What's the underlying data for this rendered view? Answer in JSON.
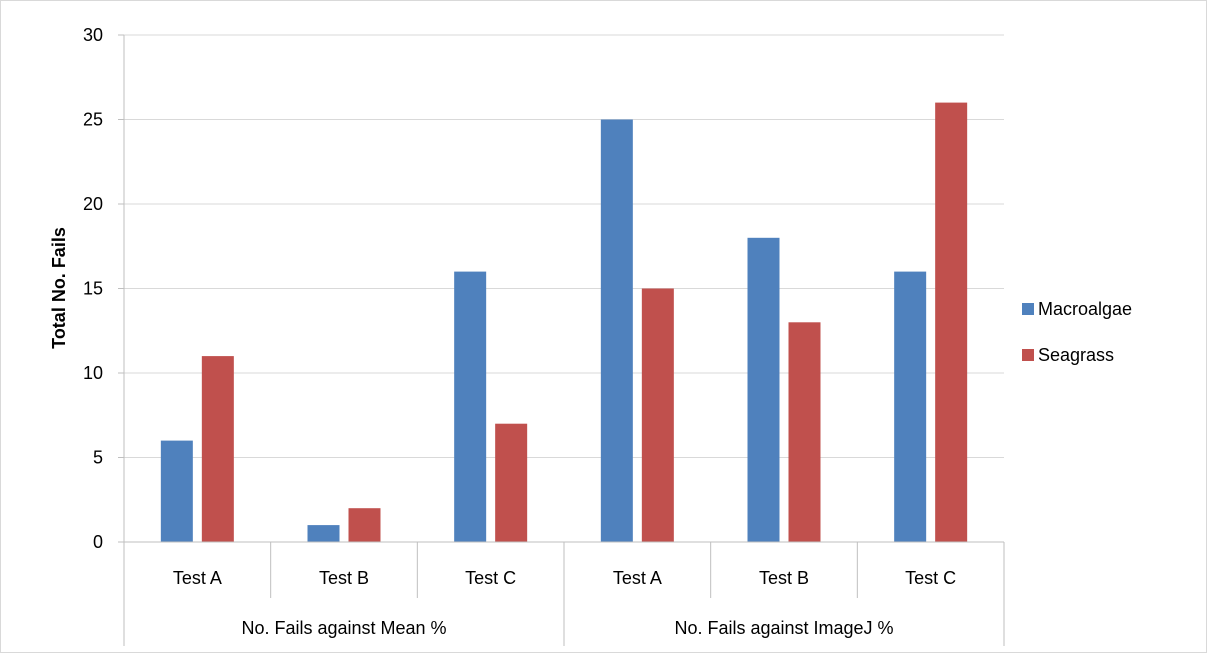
{
  "chart_data": {
    "type": "bar",
    "title": "",
    "ylabel": "Total No. Fails",
    "xlabel": "",
    "ylim": [
      0,
      30
    ],
    "y_ticks": [
      "0",
      "5",
      "10",
      "15",
      "20",
      "25",
      "30"
    ],
    "grid": true,
    "legend_position": "right",
    "categories": [
      "Test A",
      "Test B",
      "Test C",
      "Test A",
      "Test B",
      "Test C"
    ],
    "groups": [
      {
        "label": "No. Fails against Mean %",
        "span": 3
      },
      {
        "label": "No. Fails against ImageJ %",
        "span": 3
      }
    ],
    "series": [
      {
        "name": "Macroalgae",
        "color": "#4f81bd",
        "values": [
          6,
          1,
          16,
          25,
          18,
          16
        ]
      },
      {
        "name": "Seagrass",
        "color": "#c0504d",
        "values": [
          11,
          2,
          7,
          15,
          13,
          26
        ]
      }
    ]
  }
}
